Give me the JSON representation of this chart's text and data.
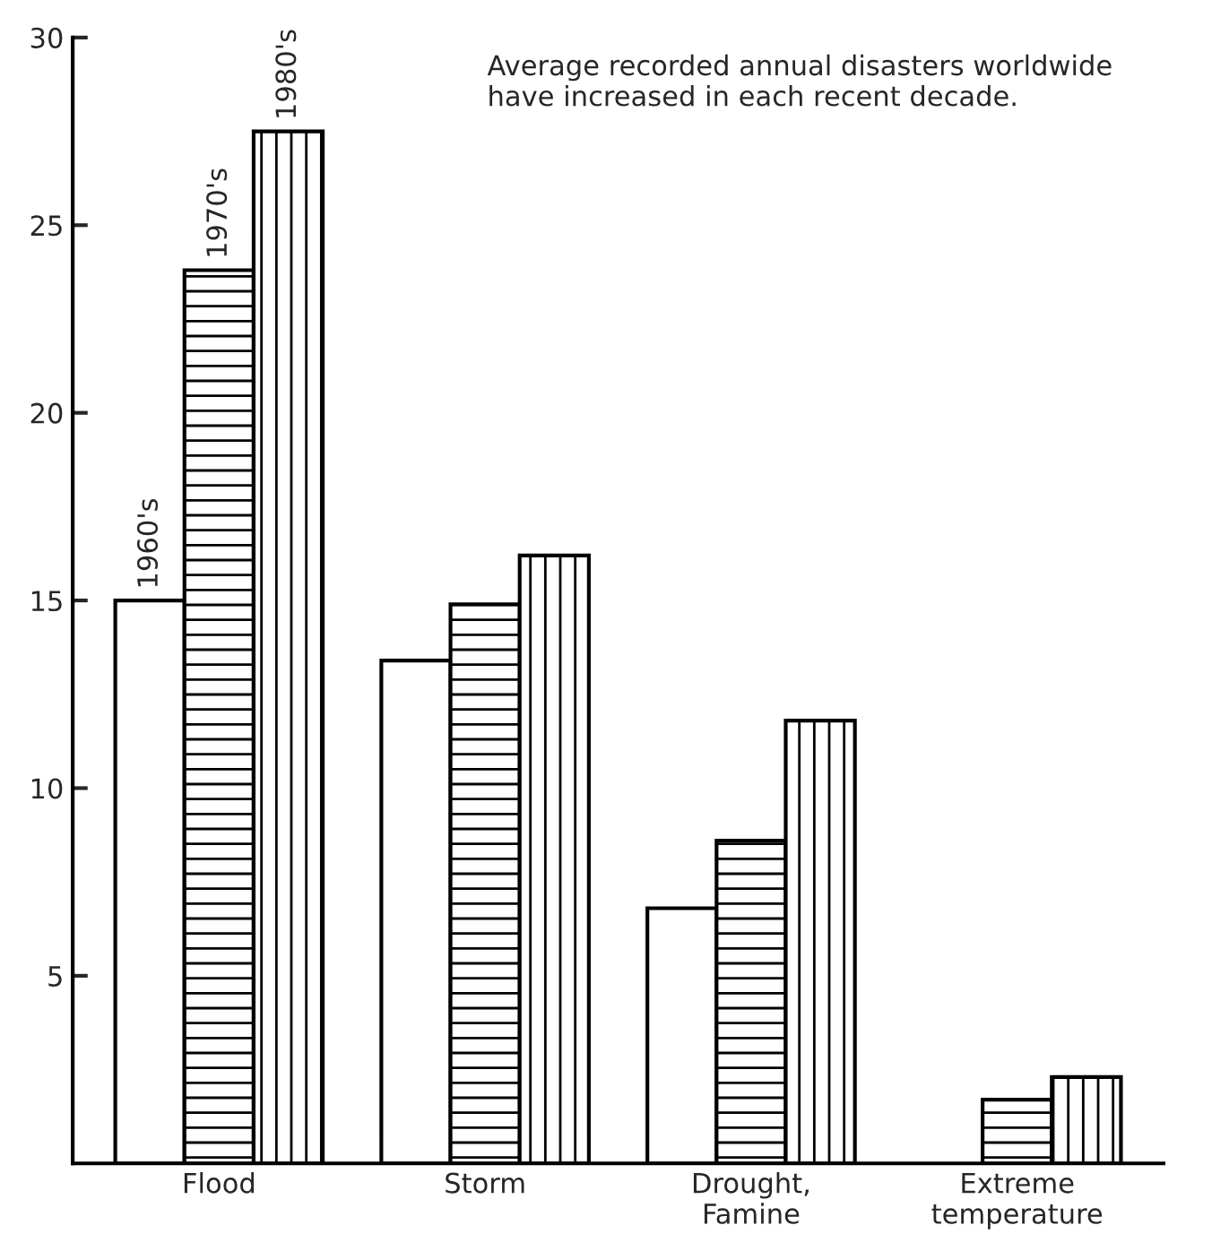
{
  "chart_data": {
    "type": "bar",
    "categories": [
      "Flood",
      "Storm",
      "Drought,\nFamine",
      "Extreme\ntemperature"
    ],
    "series": [
      {
        "name": "1960's",
        "color": "#ffffff",
        "values": [
          15.0,
          13.4,
          6.8,
          null
        ]
      },
      {
        "name": "1970's",
        "color": "#000000",
        "values": [
          23.8,
          14.9,
          8.6,
          1.7
        ]
      },
      {
        "name": "1980's",
        "color": "#000000",
        "values": [
          27.5,
          16.2,
          11.8,
          2.3
        ]
      }
    ],
    "ylim": [
      0,
      30
    ],
    "yticks": [
      5,
      10,
      15,
      20,
      25,
      30
    ],
    "annotations": [
      "Average recorded annual disasters worldwide\nhave increased in each recent decade."
    ],
    "grid": false,
    "legend": false
  }
}
